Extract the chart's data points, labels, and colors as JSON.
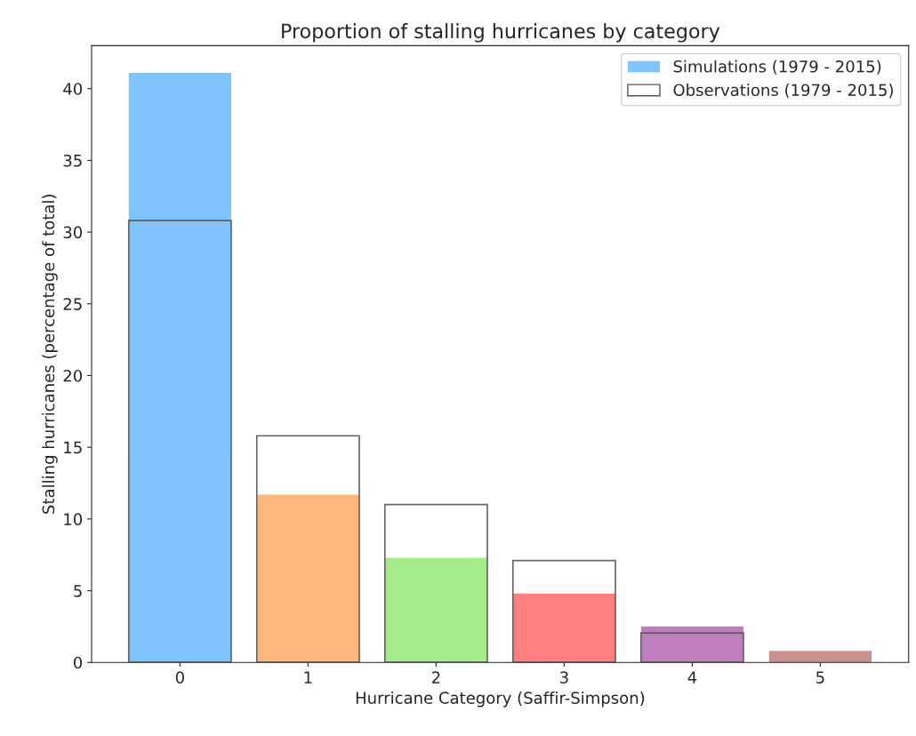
{
  "chart_data": {
    "type": "bar",
    "title": "Proportion of stalling hurricanes by category",
    "xlabel": "Hurricane Category (Saffir-Simpson)",
    "ylabel": "Stalling hurricanes (percentage of total)",
    "categories": [
      "0",
      "1",
      "2",
      "3",
      "4",
      "5"
    ],
    "series": [
      {
        "name": "Simulations (1979 - 2015)",
        "color": "#80c4ff",
        "colors": [
          "#80c4ff",
          "#ffb77e",
          "#a6eb8a",
          "#ff7f7f",
          "#bf7fbf",
          "#c99090"
        ],
        "values": [
          41.1,
          11.7,
          7.3,
          4.8,
          2.5,
          0.8
        ]
      },
      {
        "name": "Observations (1979 - 2015)",
        "color": "#555555",
        "values": [
          30.8,
          15.8,
          11.0,
          7.1,
          2.05,
          null
        ]
      }
    ],
    "ylim": [
      0,
      43
    ],
    "yticks": [
      0,
      5,
      10,
      15,
      20,
      25,
      30,
      35,
      40
    ],
    "grid": false,
    "legend": "top right"
  }
}
